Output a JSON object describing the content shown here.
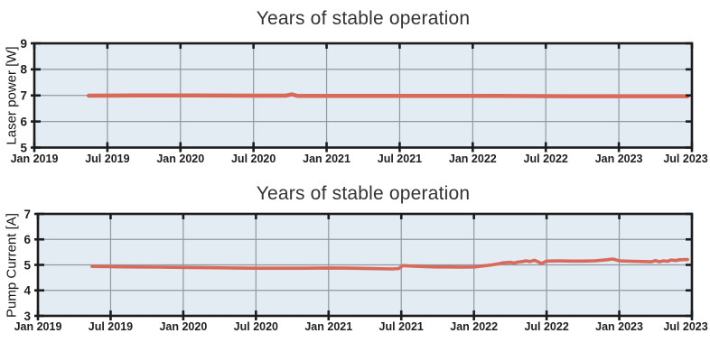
{
  "style": {
    "line_color": "#d96a59",
    "plot_bg": "#e3ebf3",
    "grid_color": "#9098a1",
    "frame_color": "#1c1c1c",
    "text_color": "#1f1f1f",
    "title_color": "#333333"
  },
  "chart_data": [
    {
      "type": "line",
      "title": "Years of stable operation",
      "xlabel": "",
      "ylabel": "Laser power [W]",
      "ylim": [
        5,
        9
      ],
      "yticks": [
        5,
        6,
        7,
        8,
        9
      ],
      "xlim": [
        "2019-01",
        "2023-07"
      ],
      "xtick_labels": [
        "Jan 2019",
        "Jul 2019",
        "Jan 2020",
        "Jul 2020",
        "Jan 2021",
        "Jul 2021",
        "Jan 2022",
        "Jul 2022",
        "Jan 2023",
        "Jul 2023"
      ],
      "grid": true,
      "legend": "none",
      "series": [
        {
          "name": "laser-power",
          "points": [
            [
              "2019-05-15",
              6.99
            ],
            [
              "2019-09-01",
              7.0
            ],
            [
              "2020-02-01",
              7.0
            ],
            [
              "2020-07-01",
              6.99
            ],
            [
              "2020-09-20",
              6.99
            ],
            [
              "2020-10-05",
              7.04
            ],
            [
              "2020-10-20",
              6.98
            ],
            [
              "2021-03-01",
              6.98
            ],
            [
              "2021-09-01",
              6.98
            ],
            [
              "2022-03-01",
              6.98
            ],
            [
              "2022-09-01",
              6.97
            ],
            [
              "2023-03-01",
              6.97
            ],
            [
              "2023-06-20",
              6.97
            ]
          ]
        }
      ]
    },
    {
      "type": "line",
      "title": "Years of stable operation",
      "xlabel": "",
      "ylabel": "Pump Current [A]",
      "ylim": [
        3,
        7
      ],
      "yticks": [
        3,
        4,
        5,
        6,
        7
      ],
      "xlim": [
        "2019-01",
        "2023-07"
      ],
      "xtick_labels": [
        "Jan 2019",
        "Jul 2019",
        "Jan 2020",
        "Jul 2020",
        "Jan 2021",
        "Jul 2021",
        "Jan 2022",
        "Jul 2022",
        "Jan 2023",
        "Jul 2023"
      ],
      "grid": true,
      "legend": "none",
      "series": [
        {
          "name": "pump-current",
          "points": [
            [
              "2019-05-15",
              4.94
            ],
            [
              "2019-07-01",
              4.93
            ],
            [
              "2019-09-01",
              4.92
            ],
            [
              "2019-11-01",
              4.91
            ],
            [
              "2020-01-01",
              4.9
            ],
            [
              "2020-03-01",
              4.89
            ],
            [
              "2020-05-01",
              4.88
            ],
            [
              "2020-07-01",
              4.87
            ],
            [
              "2020-09-01",
              4.87
            ],
            [
              "2020-11-01",
              4.87
            ],
            [
              "2021-01-01",
              4.88
            ],
            [
              "2021-03-01",
              4.87
            ],
            [
              "2021-05-01",
              4.85
            ],
            [
              "2021-06-10",
              4.84
            ],
            [
              "2021-06-25",
              4.86
            ],
            [
              "2021-07-05",
              4.97
            ],
            [
              "2021-08-01",
              4.95
            ],
            [
              "2021-09-01",
              4.93
            ],
            [
              "2021-10-01",
              4.92
            ],
            [
              "2021-11-01",
              4.92
            ],
            [
              "2021-12-01",
              4.91
            ],
            [
              "2022-01-01",
              4.92
            ],
            [
              "2022-02-01",
              4.97
            ],
            [
              "2022-02-15",
              5.0
            ],
            [
              "2022-03-01",
              5.04
            ],
            [
              "2022-03-15",
              5.08
            ],
            [
              "2022-04-01",
              5.1
            ],
            [
              "2022-04-10",
              5.07
            ],
            [
              "2022-04-20",
              5.11
            ],
            [
              "2022-05-01",
              5.13
            ],
            [
              "2022-05-10",
              5.16
            ],
            [
              "2022-05-20",
              5.13
            ],
            [
              "2022-06-01",
              5.18
            ],
            [
              "2022-06-10",
              5.12
            ],
            [
              "2022-06-18",
              5.05
            ],
            [
              "2022-07-01",
              5.15
            ],
            [
              "2022-08-01",
              5.16
            ],
            [
              "2022-09-01",
              5.15
            ],
            [
              "2022-10-01",
              5.15
            ],
            [
              "2022-11-01",
              5.16
            ],
            [
              "2022-12-01",
              5.2
            ],
            [
              "2022-12-15",
              5.23
            ],
            [
              "2023-01-01",
              5.16
            ],
            [
              "2023-02-01",
              5.14
            ],
            [
              "2023-03-01",
              5.13
            ],
            [
              "2023-03-20",
              5.12
            ],
            [
              "2023-04-01",
              5.17
            ],
            [
              "2023-04-10",
              5.12
            ],
            [
              "2023-04-20",
              5.16
            ],
            [
              "2023-05-01",
              5.14
            ],
            [
              "2023-05-10",
              5.19
            ],
            [
              "2023-05-20",
              5.17
            ],
            [
              "2023-06-01",
              5.2
            ],
            [
              "2023-06-20",
              5.21
            ]
          ]
        }
      ]
    }
  ]
}
